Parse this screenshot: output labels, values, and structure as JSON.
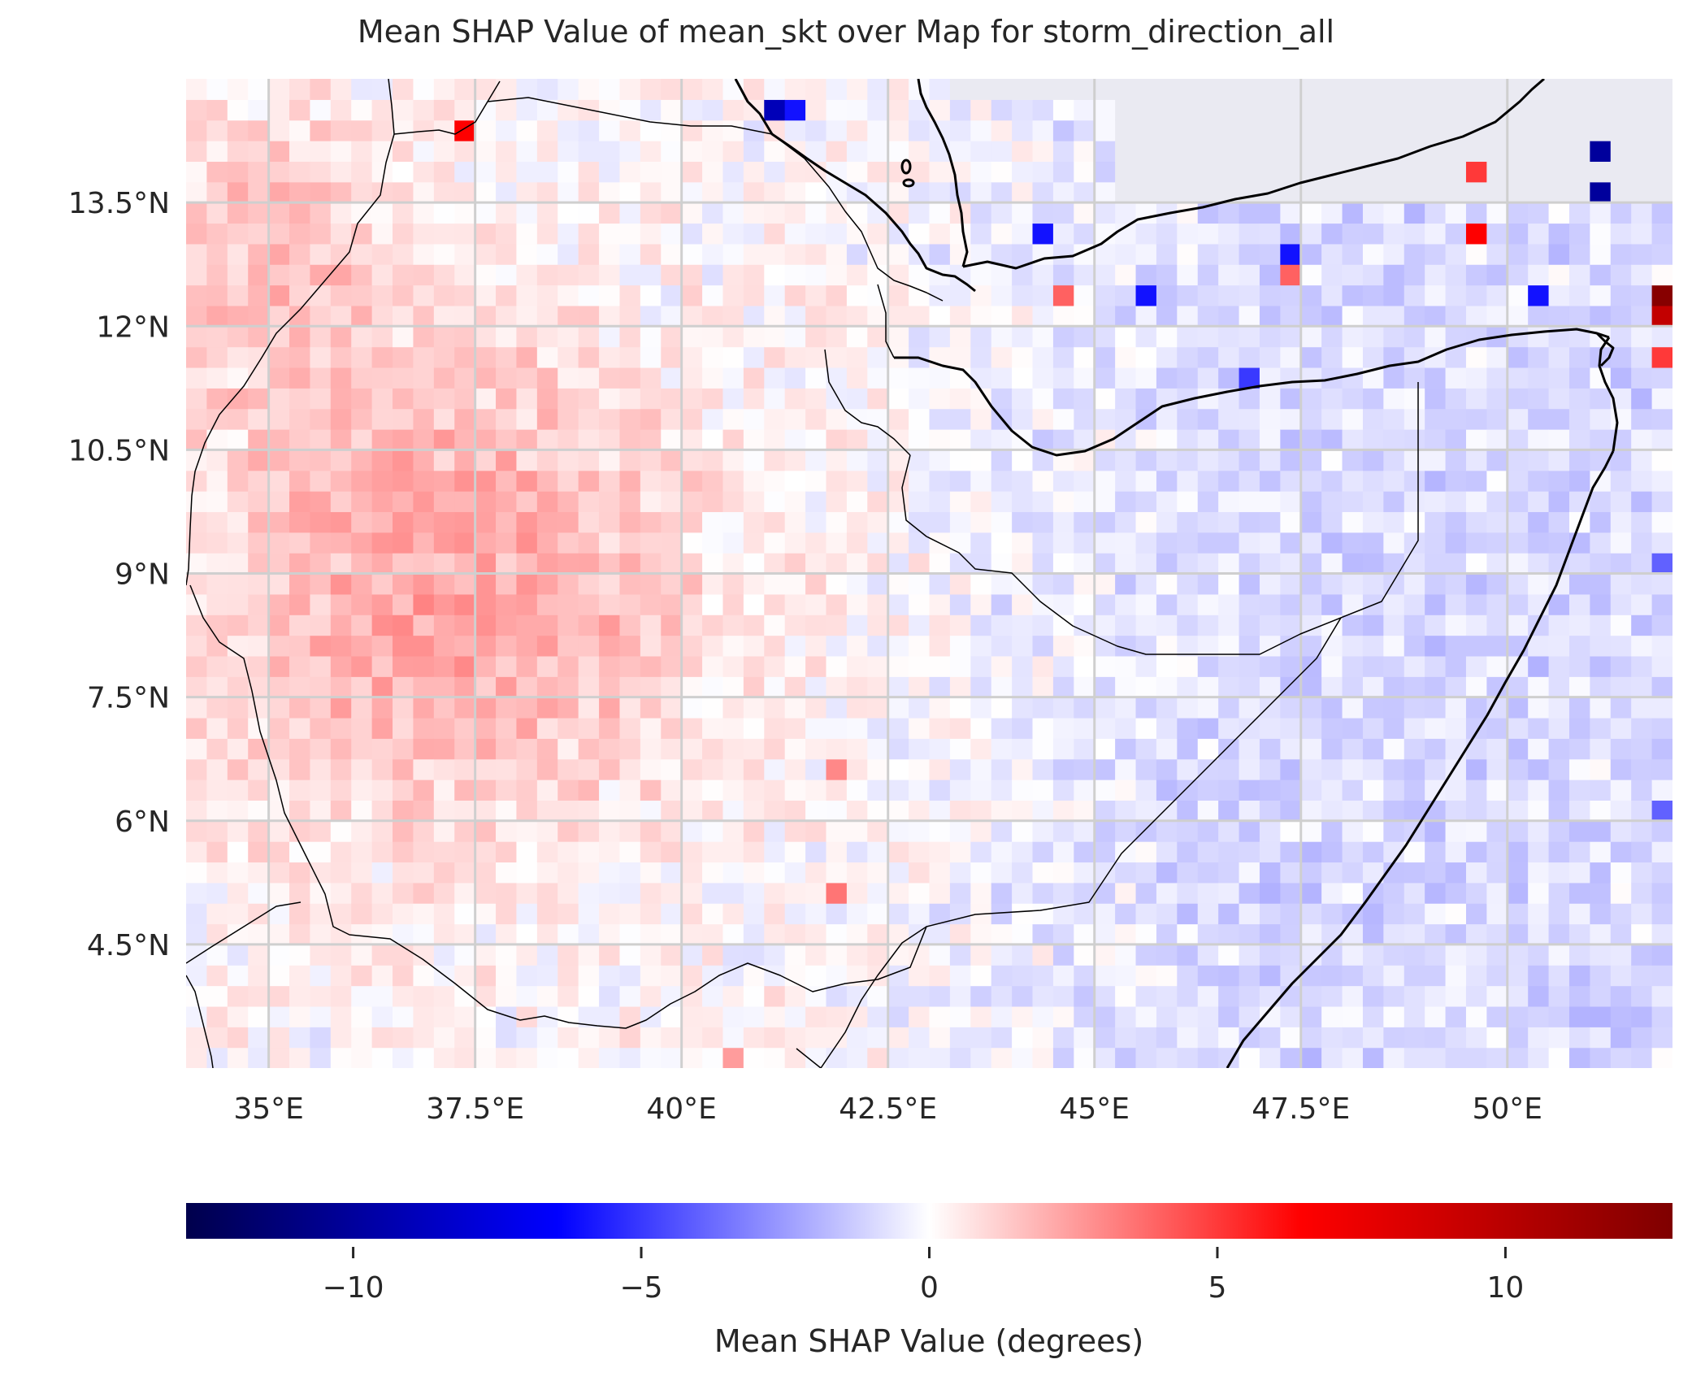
{
  "title": "Mean SHAP Value of mean_skt over Map for storm_direction_all",
  "map": {
    "lon_range": [
      34,
      52
    ],
    "lat_range": [
      3,
      15
    ],
    "lon_ticks": [
      {
        "value": 35,
        "label": "35°E"
      },
      {
        "value": 37.5,
        "label": "37.5°E"
      },
      {
        "value": 40,
        "label": "40°E"
      },
      {
        "value": 42.5,
        "label": "42.5°E"
      },
      {
        "value": 45,
        "label": "45°E"
      },
      {
        "value": 47.5,
        "label": "47.5°E"
      },
      {
        "value": 50,
        "label": "50°E"
      }
    ],
    "lat_ticks": [
      {
        "value": 13.5,
        "label": "13.5°N"
      },
      {
        "value": 12,
        "label": "12°N"
      },
      {
        "value": 10.5,
        "label": "10.5°N"
      },
      {
        "value": 9,
        "label": "9°N"
      },
      {
        "value": 7.5,
        "label": "7.5°N"
      },
      {
        "value": 6,
        "label": "6°N"
      },
      {
        "value": 4.5,
        "label": "4.5°N"
      }
    ],
    "grid": true,
    "grid_color": "#cfcfcf",
    "missing_color": "#eaeaf2",
    "cell_size_deg": 0.25
  },
  "colorbar": {
    "colormap": "seismic",
    "range": [
      -12.9,
      12.9
    ],
    "ticks": [
      {
        "value": -10,
        "label": "−10"
      },
      {
        "value": -5,
        "label": "−5"
      },
      {
        "value": 0,
        "label": "0"
      },
      {
        "value": 5,
        "label": "5"
      },
      {
        "value": 10,
        "label": "10"
      }
    ],
    "label": "Mean SHAP Value (degrees)"
  },
  "chart_data": {
    "type": "heatmap",
    "title": "Mean SHAP Value of mean_skt over Map for storm_direction_all",
    "x_axis": "longitude",
    "y_axis": "latitude",
    "xlim": [
      34,
      52
    ],
    "ylim": [
      3,
      15
    ],
    "value_range": [
      -12.9,
      12.9
    ],
    "notable_cells": [
      {
        "lon": 37.375,
        "lat": 14.375,
        "value": 6.5
      },
      {
        "lon": 41.125,
        "lat": 14.625,
        "value": -9.0
      },
      {
        "lon": 41.375,
        "lat": 14.625,
        "value": -6.0
      },
      {
        "lon": 51.125,
        "lat": 14.125,
        "value": -10.0
      },
      {
        "lon": 51.125,
        "lat": 13.625,
        "value": -10.0
      },
      {
        "lon": 49.625,
        "lat": 13.125,
        "value": 6.5
      },
      {
        "lon": 49.625,
        "lat": 13.875,
        "value": 5.0
      },
      {
        "lon": 51.875,
        "lat": 12.375,
        "value": 12.5
      },
      {
        "lon": 51.875,
        "lat": 12.125,
        "value": 9.5
      },
      {
        "lon": 51.875,
        "lat": 11.625,
        "value": 5.0
      },
      {
        "lon": 44.375,
        "lat": 13.125,
        "value": -6.0
      },
      {
        "lon": 47.375,
        "lat": 12.875,
        "value": -6.0
      },
      {
        "lon": 47.375,
        "lat": 12.625,
        "value": 4.0
      },
      {
        "lon": 45.625,
        "lat": 12.375,
        "value": -6.0
      },
      {
        "lon": 50.375,
        "lat": 12.375,
        "value": -6.0
      },
      {
        "lon": 46.875,
        "lat": 11.375,
        "value": -5.0
      },
      {
        "lon": 44.625,
        "lat": 12.375,
        "value": 4.0
      },
      {
        "lon": 41.875,
        "lat": 5.125,
        "value": 3.5
      },
      {
        "lon": 41.875,
        "lat": 6.625,
        "value": 3.0
      },
      {
        "lon": 51.875,
        "lat": 9.125,
        "value": -4.0
      },
      {
        "lon": 51.875,
        "lat": 6.125,
        "value": -4.0
      },
      {
        "lon": 36.625,
        "lat": 8.375,
        "value": 3.0
      },
      {
        "lon": 37.125,
        "lat": 9.625,
        "value": 2.5
      },
      {
        "lon": 40.625,
        "lat": 3.125,
        "value": 2.5
      }
    ]
  }
}
